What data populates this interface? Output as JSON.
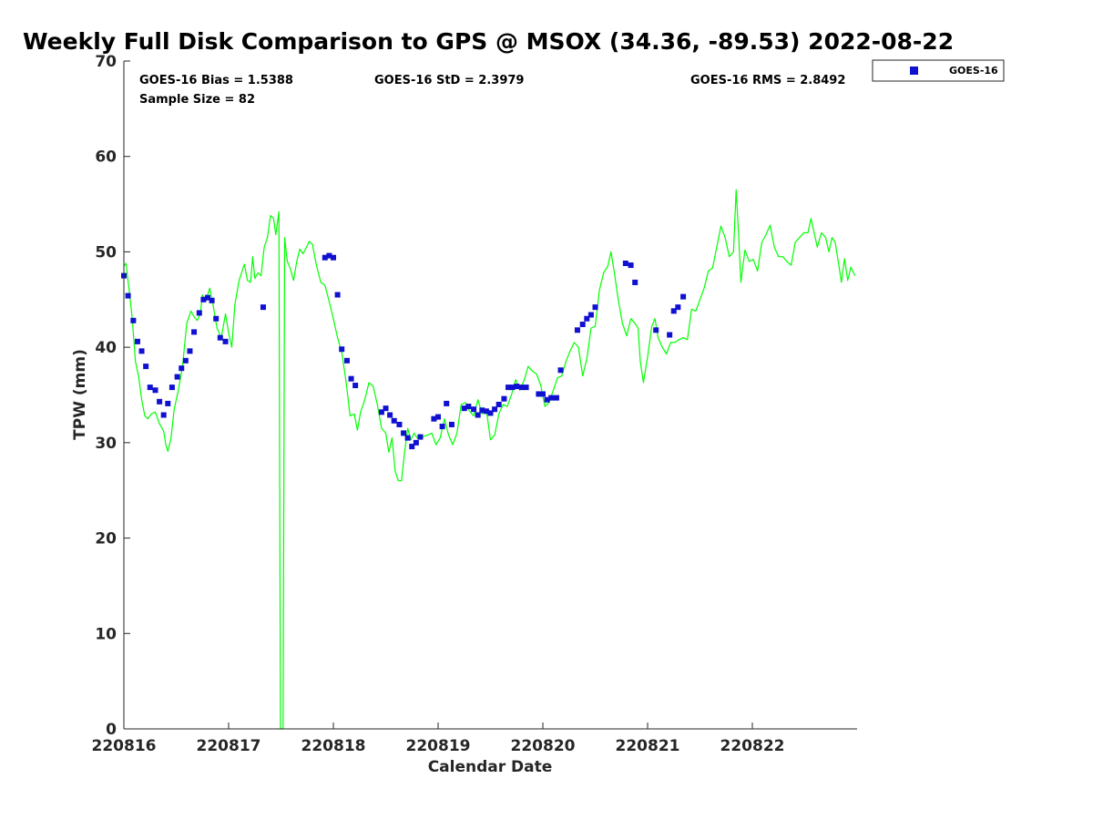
{
  "chart_data": {
    "type": "scatter",
    "title": "Weekly Full Disk Comparison to GPS @ MSOX (34.36, -89.53) 2022-08-22",
    "xlabel": "Calendar Date",
    "ylabel": "TPW (mm)",
    "xlim": [
      0,
      7
    ],
    "ylim": [
      0,
      70
    ],
    "x_tick_values": [
      0,
      1,
      2,
      3,
      4,
      5,
      6
    ],
    "x_tick_labels": [
      "220816",
      "220817",
      "220818",
      "220819",
      "220820",
      "220821",
      "220822"
    ],
    "y_ticks": [
      0,
      10,
      20,
      30,
      40,
      50,
      60,
      70
    ],
    "stats": {
      "bias": "GOES-16 Bias = 1.5388",
      "std": "GOES-16 StD = 2.3979",
      "rms": "GOES-16 RMS = 2.8492",
      "sample": "Sample Size = 82"
    },
    "legend": {
      "label": "GOES-16",
      "position": "outside-top-right"
    },
    "colors": {
      "goes": "#1010d0",
      "gps": "#00ff00",
      "axis": "#262626"
    },
    "series": [
      {
        "name": "GOES-16",
        "marker": "square",
        "points": [
          [
            0.0,
            47.5
          ],
          [
            0.04,
            45.4
          ],
          [
            0.09,
            42.8
          ],
          [
            0.13,
            40.6
          ],
          [
            0.17,
            39.6
          ],
          [
            0.21,
            38.0
          ],
          [
            0.25,
            35.8
          ],
          [
            0.3,
            35.5
          ],
          [
            0.34,
            34.3
          ],
          [
            0.38,
            32.9
          ],
          [
            0.42,
            34.1
          ],
          [
            0.46,
            35.8
          ],
          [
            0.51,
            36.9
          ],
          [
            0.55,
            37.8
          ],
          [
            0.59,
            38.6
          ],
          [
            0.63,
            39.6
          ],
          [
            0.67,
            41.6
          ],
          [
            0.72,
            43.6
          ],
          [
            0.76,
            45.0
          ],
          [
            0.8,
            45.2
          ],
          [
            0.84,
            44.9
          ],
          [
            0.88,
            43.0
          ],
          [
            0.92,
            41.0
          ],
          [
            0.97,
            40.6
          ],
          [
            1.33,
            44.2
          ],
          [
            1.92,
            49.4
          ],
          [
            1.96,
            49.6
          ],
          [
            2.0,
            49.4
          ],
          [
            2.04,
            45.5
          ],
          [
            2.08,
            39.8
          ],
          [
            2.13,
            38.6
          ],
          [
            2.17,
            36.7
          ],
          [
            2.21,
            36.0
          ],
          [
            2.46,
            33.2
          ],
          [
            2.5,
            33.6
          ],
          [
            2.54,
            32.9
          ],
          [
            2.58,
            32.3
          ],
          [
            2.63,
            31.9
          ],
          [
            2.67,
            31.0
          ],
          [
            2.71,
            30.5
          ],
          [
            2.75,
            29.6
          ],
          [
            2.79,
            30.0
          ],
          [
            2.83,
            30.6
          ],
          [
            2.96,
            32.5
          ],
          [
            3.0,
            32.7
          ],
          [
            3.04,
            31.7
          ],
          [
            3.08,
            34.1
          ],
          [
            3.13,
            31.9
          ],
          [
            3.25,
            33.6
          ],
          [
            3.29,
            33.8
          ],
          [
            3.34,
            33.5
          ],
          [
            3.38,
            32.9
          ],
          [
            3.42,
            33.4
          ],
          [
            3.46,
            33.3
          ],
          [
            3.5,
            33.1
          ],
          [
            3.54,
            33.5
          ],
          [
            3.58,
            34.0
          ],
          [
            3.63,
            34.6
          ],
          [
            3.67,
            35.8
          ],
          [
            3.71,
            35.8
          ],
          [
            3.75,
            35.9
          ],
          [
            3.8,
            35.8
          ],
          [
            3.84,
            35.8
          ],
          [
            3.96,
            35.1
          ],
          [
            4.0,
            35.1
          ],
          [
            4.04,
            34.5
          ],
          [
            4.08,
            34.7
          ],
          [
            4.13,
            34.7
          ],
          [
            4.17,
            37.6
          ],
          [
            4.33,
            41.8
          ],
          [
            4.38,
            42.4
          ],
          [
            4.42,
            43.0
          ],
          [
            4.46,
            43.4
          ],
          [
            4.5,
            44.2
          ],
          [
            4.79,
            48.8
          ],
          [
            4.84,
            48.6
          ],
          [
            4.88,
            46.8
          ],
          [
            5.08,
            41.8
          ],
          [
            5.21,
            41.3
          ],
          [
            5.25,
            43.8
          ],
          [
            5.29,
            44.2
          ],
          [
            5.34,
            45.3
          ]
        ]
      },
      {
        "name": "GPS",
        "marker": "line",
        "points": [
          [
            0.0,
            48.5
          ],
          [
            0.02,
            48.8
          ],
          [
            0.05,
            46.0
          ],
          [
            0.08,
            43.0
          ],
          [
            0.11,
            38.5
          ],
          [
            0.14,
            37.0
          ],
          [
            0.17,
            34.5
          ],
          [
            0.2,
            32.8
          ],
          [
            0.23,
            32.5
          ],
          [
            0.26,
            33.0
          ],
          [
            0.3,
            33.2
          ],
          [
            0.34,
            32.0
          ],
          [
            0.38,
            31.2
          ],
          [
            0.4,
            29.8
          ],
          [
            0.42,
            29.1
          ],
          [
            0.45,
            30.5
          ],
          [
            0.48,
            33.5
          ],
          [
            0.52,
            35.5
          ],
          [
            0.56,
            38.0
          ],
          [
            0.6,
            42.5
          ],
          [
            0.64,
            43.8
          ],
          [
            0.67,
            43.2
          ],
          [
            0.7,
            42.8
          ],
          [
            0.73,
            43.5
          ],
          [
            0.75,
            45.5
          ],
          [
            0.78,
            44.8
          ],
          [
            0.82,
            46.2
          ],
          [
            0.85,
            44.5
          ],
          [
            0.89,
            42.0
          ],
          [
            0.93,
            41.0
          ],
          [
            0.97,
            43.5
          ],
          [
            1.0,
            41.5
          ],
          [
            1.03,
            40.0
          ],
          [
            1.06,
            44.5
          ],
          [
            1.1,
            47.0
          ],
          [
            1.15,
            48.7
          ],
          [
            1.18,
            47.0
          ],
          [
            1.21,
            46.8
          ],
          [
            1.23,
            49.5
          ],
          [
            1.25,
            47.2
          ],
          [
            1.28,
            47.8
          ],
          [
            1.31,
            47.5
          ],
          [
            1.34,
            50.5
          ],
          [
            1.37,
            51.5
          ],
          [
            1.4,
            53.8
          ],
          [
            1.43,
            53.5
          ],
          [
            1.45,
            51.8
          ],
          [
            1.48,
            54.2
          ],
          [
            1.495,
            0.0
          ],
          [
            1.52,
            0.0
          ],
          [
            1.535,
            51.5
          ],
          [
            1.56,
            49.0
          ],
          [
            1.59,
            48.2
          ],
          [
            1.62,
            47.0
          ],
          [
            1.65,
            49.0
          ],
          [
            1.68,
            50.3
          ],
          [
            1.71,
            49.8
          ],
          [
            1.74,
            50.4
          ],
          [
            1.77,
            51.1
          ],
          [
            1.8,
            50.8
          ],
          [
            1.84,
            48.5
          ],
          [
            1.88,
            46.8
          ],
          [
            1.92,
            46.5
          ],
          [
            1.96,
            44.8
          ],
          [
            2.0,
            43.0
          ],
          [
            2.04,
            41.0
          ],
          [
            2.08,
            39.5
          ],
          [
            2.12,
            36.5
          ],
          [
            2.16,
            32.8
          ],
          [
            2.2,
            33.0
          ],
          [
            2.23,
            31.3
          ],
          [
            2.26,
            33.2
          ],
          [
            2.3,
            34.5
          ],
          [
            2.34,
            36.3
          ],
          [
            2.38,
            35.9
          ],
          [
            2.42,
            34.0
          ],
          [
            2.46,
            31.5
          ],
          [
            2.5,
            31.0
          ],
          [
            2.53,
            29.0
          ],
          [
            2.56,
            30.5
          ],
          [
            2.59,
            27.0
          ],
          [
            2.62,
            26.0
          ],
          [
            2.65,
            26.0
          ],
          [
            2.68,
            29.0
          ],
          [
            2.71,
            31.5
          ],
          [
            2.74,
            30.3
          ],
          [
            2.77,
            31.0
          ],
          [
            2.8,
            30.5
          ],
          [
            2.85,
            30.6
          ],
          [
            2.9,
            30.8
          ],
          [
            2.94,
            31.0
          ],
          [
            2.98,
            29.8
          ],
          [
            3.02,
            30.5
          ],
          [
            3.06,
            32.5
          ],
          [
            3.1,
            30.8
          ],
          [
            3.14,
            29.8
          ],
          [
            3.18,
            31.0
          ],
          [
            3.22,
            34.0
          ],
          [
            3.26,
            34.2
          ],
          [
            3.3,
            33.3
          ],
          [
            3.34,
            32.8
          ],
          [
            3.38,
            34.5
          ],
          [
            3.42,
            33.0
          ],
          [
            3.46,
            33.5
          ],
          [
            3.5,
            30.3
          ],
          [
            3.54,
            30.8
          ],
          [
            3.58,
            33.0
          ],
          [
            3.62,
            34.0
          ],
          [
            3.66,
            33.8
          ],
          [
            3.7,
            35.0
          ],
          [
            3.74,
            36.6
          ],
          [
            3.78,
            35.5
          ],
          [
            3.82,
            36.5
          ],
          [
            3.86,
            38.0
          ],
          [
            3.9,
            37.5
          ],
          [
            3.94,
            37.2
          ],
          [
            3.98,
            36.0
          ],
          [
            4.02,
            33.8
          ],
          [
            4.06,
            34.2
          ],
          [
            4.1,
            35.5
          ],
          [
            4.14,
            36.8
          ],
          [
            4.18,
            37.0
          ],
          [
            4.22,
            38.5
          ],
          [
            4.26,
            39.6
          ],
          [
            4.3,
            40.5
          ],
          [
            4.34,
            40.0
          ],
          [
            4.38,
            37.0
          ],
          [
            4.42,
            38.8
          ],
          [
            4.46,
            42.0
          ],
          [
            4.5,
            42.2
          ],
          [
            4.54,
            46.0
          ],
          [
            4.58,
            47.8
          ],
          [
            4.62,
            48.5
          ],
          [
            4.65,
            50.0
          ],
          [
            4.68,
            48.0
          ],
          [
            4.72,
            45.0
          ],
          [
            4.76,
            42.5
          ],
          [
            4.8,
            41.2
          ],
          [
            4.84,
            43.0
          ],
          [
            4.88,
            42.5
          ],
          [
            4.91,
            42.0
          ],
          [
            4.93,
            38.5
          ],
          [
            4.96,
            36.3
          ],
          [
            5.0,
            39.0
          ],
          [
            5.04,
            42.2
          ],
          [
            5.07,
            43.0
          ],
          [
            5.1,
            41.0
          ],
          [
            5.14,
            40.0
          ],
          [
            5.18,
            39.3
          ],
          [
            5.22,
            40.5
          ],
          [
            5.26,
            40.5
          ],
          [
            5.3,
            40.8
          ],
          [
            5.34,
            41.0
          ],
          [
            5.38,
            40.8
          ],
          [
            5.42,
            44.0
          ],
          [
            5.46,
            43.8
          ],
          [
            5.5,
            45.0
          ],
          [
            5.54,
            46.2
          ],
          [
            5.58,
            48.0
          ],
          [
            5.62,
            48.3
          ],
          [
            5.66,
            50.5
          ],
          [
            5.7,
            52.7
          ],
          [
            5.74,
            51.5
          ],
          [
            5.78,
            49.5
          ],
          [
            5.82,
            50.0
          ],
          [
            5.845,
            56.5
          ],
          [
            5.87,
            51.5
          ],
          [
            5.89,
            46.8
          ],
          [
            5.93,
            50.2
          ],
          [
            5.97,
            49.0
          ],
          [
            6.01,
            49.2
          ],
          [
            6.05,
            48.0
          ],
          [
            6.09,
            51.0
          ],
          [
            6.13,
            51.8
          ],
          [
            6.17,
            52.8
          ],
          [
            6.21,
            50.5
          ],
          [
            6.25,
            49.5
          ],
          [
            6.29,
            49.5
          ],
          [
            6.33,
            49.0
          ],
          [
            6.37,
            48.6
          ],
          [
            6.41,
            51.0
          ],
          [
            6.45,
            51.5
          ],
          [
            6.49,
            52.0
          ],
          [
            6.53,
            52.0
          ],
          [
            6.56,
            53.5
          ],
          [
            6.59,
            52.0
          ],
          [
            6.62,
            50.5
          ],
          [
            6.66,
            52.0
          ],
          [
            6.7,
            51.5
          ],
          [
            6.73,
            50.0
          ],
          [
            6.76,
            51.5
          ],
          [
            6.79,
            51.0
          ],
          [
            6.82,
            49.0
          ],
          [
            6.85,
            46.8
          ],
          [
            6.88,
            49.3
          ],
          [
            6.91,
            47.0
          ],
          [
            6.94,
            48.4
          ],
          [
            6.98,
            47.5
          ]
        ]
      }
    ]
  }
}
